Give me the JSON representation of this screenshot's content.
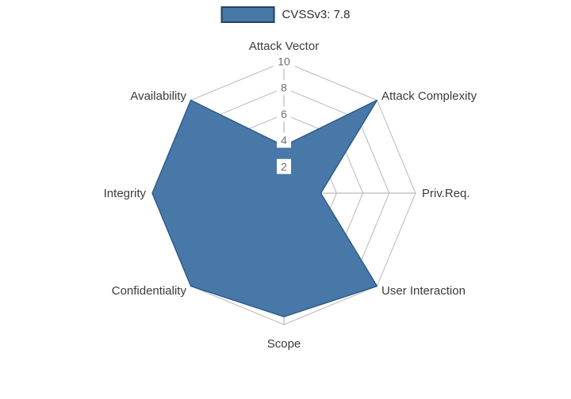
{
  "legend": {
    "label": "CVSSv3: 7.8"
  },
  "chart_data": {
    "type": "radar",
    "title": "CVSSv3: 7.8",
    "categories": [
      "Attack Vector",
      "Attack Complexity",
      "Priv.Req.",
      "User Interaction",
      "Scope",
      "Confidentiality",
      "Integrity",
      "Availability"
    ],
    "values": [
      3.6,
      10,
      2.8,
      10,
      9.4,
      10,
      10,
      10
    ],
    "radial_ticks": [
      2,
      4,
      6,
      8,
      10
    ],
    "rmax": 10,
    "grid": true,
    "grid_style": "spider-web",
    "legend_position": "top-center",
    "colors": {
      "fill": "#4878a8",
      "stroke": "#2e5c8a",
      "grid": "#b8b8b8",
      "spoke": "#aaaaaa",
      "axis_label": "#3b3b3b",
      "tick_label": "#6e6e6e",
      "tick_box": "#ffffff",
      "legend_border": "#24415f",
      "background": "#ffffff"
    }
  }
}
